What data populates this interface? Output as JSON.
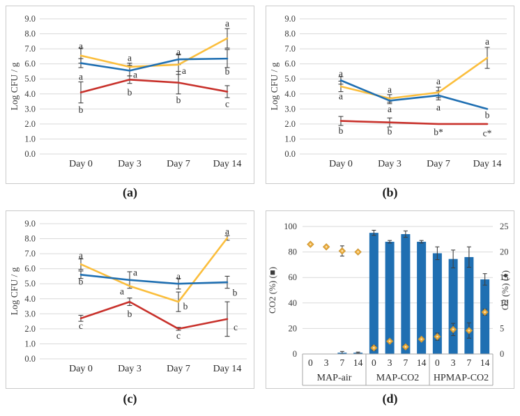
{
  "figure": {
    "captions": {
      "a": "(a)",
      "b": "(b)",
      "c": "(c)",
      "d": "(d)"
    }
  },
  "colors": {
    "blue": "#1f6fb2",
    "yellow": "#fbbe3c",
    "red": "#c8312b",
    "marker_fill": "#efaf3f",
    "marker_stroke": "#c89434",
    "marker_center": "#fdeec9",
    "grid": "#d9d9d9",
    "error": "#404040",
    "axis_text": "#3b3b3b",
    "label_text": "#2b2b2b",
    "table_line": "#a6a6a6"
  },
  "chart_data": [
    {
      "id": "a",
      "type": "line",
      "ylabel": "Log CFU / g",
      "ylim": [
        0,
        9
      ],
      "yticks": [
        "9.0",
        "8.0",
        "7.0",
        "6.0",
        "5.0",
        "4.0",
        "3.0",
        "2.0",
        "1.0",
        "0.0"
      ],
      "categories": [
        "Day 0",
        "Day 3",
        "Day 7",
        "Day 14"
      ],
      "grid": true,
      "series": [
        {
          "name": "yeasts-moulds-yellow",
          "color_key": "yellow",
          "values": [
            6.55,
            5.8,
            5.95,
            7.7
          ],
          "errors": [
            0.5,
            0.25,
            0.65,
            0.65
          ]
        },
        {
          "name": "total-viable-blue",
          "color_key": "blue",
          "values": [
            6.05,
            5.55,
            6.3,
            6.35
          ],
          "errors": [
            0.3,
            0.35,
            0.35,
            0.6
          ]
        },
        {
          "name": "lab-red",
          "color_key": "red",
          "values": [
            4.1,
            4.95,
            4.75,
            4.15
          ],
          "errors": [
            0.7,
            0.25,
            0.75,
            0.4
          ]
        }
      ],
      "letters": [
        {
          "c": 0,
          "v": 7.2,
          "t": "a"
        },
        {
          "c": 0,
          "v": 5.15,
          "t": "a"
        },
        {
          "c": 0,
          "v": 2.95,
          "t": "b"
        },
        {
          "c": 1,
          "v": 6.4,
          "t": "a"
        },
        {
          "c": 1,
          "v": 5.3,
          "t": "a",
          "dx": 8
        },
        {
          "c": 1,
          "v": 4.1,
          "t": "b"
        },
        {
          "c": 2,
          "v": 6.8,
          "t": "a"
        },
        {
          "c": 2,
          "v": 5.55,
          "t": "a",
          "dx": 8
        },
        {
          "c": 2,
          "v": 3.6,
          "t": "b"
        },
        {
          "c": 3,
          "v": 8.7,
          "t": "a"
        },
        {
          "c": 3,
          "v": 5.5,
          "t": "b"
        },
        {
          "c": 3,
          "v": 3.35,
          "t": "c"
        }
      ]
    },
    {
      "id": "b",
      "type": "line",
      "ylabel": "Log CFU / g",
      "ylim": [
        0,
        9
      ],
      "yticks": [
        "9.0",
        "8.0",
        "7.0",
        "6.0",
        "5.0",
        "4.0",
        "3.0",
        "2.0",
        "1.0",
        "0.0"
      ],
      "categories": [
        "Day 0",
        "Day 3",
        "Day 7",
        "Day 14"
      ],
      "grid": true,
      "series": [
        {
          "name": "yeasts-moulds-yellow",
          "color_key": "yellow",
          "values": [
            4.5,
            3.7,
            4.1,
            6.4
          ],
          "errors": [
            0.35,
            0.25,
            0.35,
            0.7
          ]
        },
        {
          "name": "total-viable-blue",
          "color_key": "blue",
          "values": [
            4.9,
            3.55,
            3.9,
            3.0
          ],
          "errors": [
            0.25,
            0.2,
            0.3,
            0
          ]
        },
        {
          "name": "lab-red",
          "color_key": "red",
          "values": [
            2.2,
            2.1,
            2.0,
            2.0
          ],
          "errors": [
            0.3,
            0.3,
            0,
            0
          ]
        }
      ],
      "letters": [
        {
          "c": 0,
          "v": 5.35,
          "t": "a"
        },
        {
          "c": 0,
          "v": 3.85,
          "t": "a"
        },
        {
          "c": 0,
          "v": 1.55,
          "t": "b"
        },
        {
          "c": 1,
          "v": 4.3,
          "t": "a"
        },
        {
          "c": 1,
          "v": 3.0,
          "t": "a"
        },
        {
          "c": 1,
          "v": 1.5,
          "t": "b"
        },
        {
          "c": 2,
          "v": 4.85,
          "t": "a"
        },
        {
          "c": 2,
          "v": 3.1,
          "t": "a"
        },
        {
          "c": 2,
          "v": 1.45,
          "t": "b*"
        },
        {
          "c": 3,
          "v": 7.5,
          "t": "a"
        },
        {
          "c": 3,
          "v": 2.6,
          "t": "b"
        },
        {
          "c": 3,
          "v": 1.4,
          "t": "c*"
        }
      ]
    },
    {
      "id": "c",
      "type": "line",
      "ylabel": "Log CFU / g",
      "ylim": [
        0,
        9
      ],
      "yticks": [
        "9.0",
        "8.0",
        "7.0",
        "6.0",
        "5.0",
        "4.0",
        "3.0",
        "2.0",
        "1.0",
        "0.0"
      ],
      "categories": [
        "Day 0",
        "Day 3",
        "Day 7",
        "Day 14"
      ],
      "grid": true,
      "series": [
        {
          "name": "yeasts-moulds-yellow",
          "color_key": "yellow",
          "values": [
            6.3,
            4.85,
            3.8,
            8.05
          ],
          "errors": [
            0.35,
            0,
            0.65,
            0.15
          ]
        },
        {
          "name": "total-viable-blue",
          "color_key": "blue",
          "values": [
            5.6,
            5.25,
            5.0,
            5.1
          ],
          "errors": [
            0.25,
            0.55,
            0.35,
            0.4
          ]
        },
        {
          "name": "lab-red",
          "color_key": "red",
          "values": [
            2.7,
            3.8,
            2.0,
            2.65
          ],
          "errors": [
            0.2,
            0.25,
            0.1,
            1.15
          ]
        }
      ],
      "letters": [
        {
          "c": 0,
          "v": 6.9,
          "t": "a"
        },
        {
          "c": 0,
          "v": 5.15,
          "t": "b"
        },
        {
          "c": 0,
          "v": 2.2,
          "t": "c"
        },
        {
          "c": 1,
          "v": 5.75,
          "t": "a",
          "dx": 8
        },
        {
          "c": 1,
          "v": 4.5,
          "t": "a",
          "dx": -11
        },
        {
          "c": 1,
          "v": 3.0,
          "t": "b"
        },
        {
          "c": 2,
          "v": 5.5,
          "t": "a"
        },
        {
          "c": 2,
          "v": 3.5,
          "t": "b",
          "dx": 10
        },
        {
          "c": 2,
          "v": 1.55,
          "t": "c"
        },
        {
          "c": 3,
          "v": 8.5,
          "t": "a"
        },
        {
          "c": 3,
          "v": 4.4,
          "t": "b",
          "dx": 11
        },
        {
          "c": 3,
          "v": 2.1,
          "t": "c",
          "dx": 12
        }
      ]
    },
    {
      "id": "d",
      "type": "bar-scatter",
      "left_axis": {
        "label": "CO2 (%) (■)",
        "ylim": [
          0,
          100
        ],
        "ticks": [
          "0",
          "20",
          "40",
          "60",
          "80",
          "100"
        ]
      },
      "right_axis": {
        "label": "O2 (%) (♦)",
        "ylim": [
          0,
          25
        ],
        "ticks": [
          "0",
          "5",
          "10",
          "15",
          "20",
          "25"
        ]
      },
      "groups": [
        {
          "label": "MAP-air"
        },
        {
          "label": "MAP-CO2"
        },
        {
          "label": "HPMAP-CO2"
        }
      ],
      "x_labels": [
        "0",
        "3",
        "7",
        "14"
      ],
      "bars": {
        "name": "CO2-percent",
        "color_key": "blue",
        "values": [
          0,
          0,
          1,
          1,
          95,
          88,
          94,
          88,
          79,
          74.5,
          76,
          58.5
        ],
        "errors": [
          0,
          0,
          1,
          0.5,
          2,
          1,
          2.5,
          1,
          5,
          7,
          8,
          4.5
        ]
      },
      "points": {
        "name": "O2-percent",
        "color_key": "marker_fill",
        "values": [
          21.5,
          21,
          20.2,
          20,
          1.2,
          2.5,
          1.4,
          2.9,
          3.4,
          4.8,
          4.6,
          8.2
        ],
        "errors": [
          0,
          0,
          1,
          0.2,
          0.5,
          0,
          0.4,
          0,
          0.7,
          1.2,
          1.5,
          0.6
        ]
      }
    }
  ]
}
